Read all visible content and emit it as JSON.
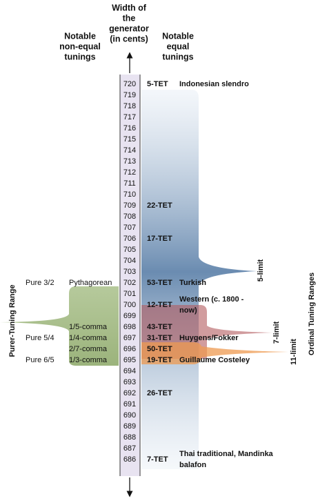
{
  "headers": {
    "generator": [
      "Width of",
      "the",
      "generator",
      "(in cents)"
    ],
    "non_equal": [
      "Notable",
      "non-equal",
      "tunings"
    ],
    "equal": [
      "Notable",
      "equal",
      "tunings"
    ]
  },
  "scale": [
    720,
    719,
    718,
    717,
    716,
    715,
    714,
    713,
    712,
    711,
    710,
    709,
    708,
    707,
    706,
    705,
    704,
    703,
    702,
    701,
    700,
    699,
    698,
    697,
    696,
    695,
    694,
    693,
    692,
    691,
    690,
    689,
    688,
    687,
    686
  ],
  "equal_tunings": [
    {
      "cents": 720,
      "name": "5-TET",
      "note": [
        "Indonesian slendro"
      ]
    },
    {
      "cents": 709,
      "name": "22-TET"
    },
    {
      "cents": 706,
      "name": "17-TET"
    },
    {
      "cents": 702,
      "name": "53-TET",
      "note": [
        "Turkish"
      ]
    },
    {
      "cents": 700,
      "name": "12-TET",
      "note": [
        "Western (c. 1800 -",
        "now)"
      ]
    },
    {
      "cents": 698,
      "name": "43-TET"
    },
    {
      "cents": 697,
      "name": "31-TET",
      "note": [
        "Huygens/Fokker"
      ]
    },
    {
      "cents": 696,
      "name": "50-TET"
    },
    {
      "cents": 695,
      "name": "19-TET",
      "note": [
        "Guillaume Costeley"
      ]
    },
    {
      "cents": 692,
      "name": "26-TET"
    },
    {
      "cents": 686,
      "name": "7-TET",
      "note": [
        "Thai traditional, Mandinka",
        "balafon"
      ]
    }
  ],
  "non_equal_tunings": [
    {
      "cents": 702,
      "pure": "Pure 3/2",
      "name": "Pythagorean"
    },
    {
      "cents": 698,
      "name": "1/5-comma"
    },
    {
      "cents": 697,
      "pure": "Pure 5/4",
      "name": "1/4-comma"
    },
    {
      "cents": 696,
      "name": "2/7-comma"
    },
    {
      "cents": 695,
      "pure": "Pure 6/5",
      "name": "1/3-comma"
    }
  ],
  "ranges": {
    "left": "Purer-Tuning Range",
    "right": "Ordinal Tuning Ranges",
    "limits": [
      "5-limit",
      "7-limit",
      "11-limit"
    ]
  }
}
